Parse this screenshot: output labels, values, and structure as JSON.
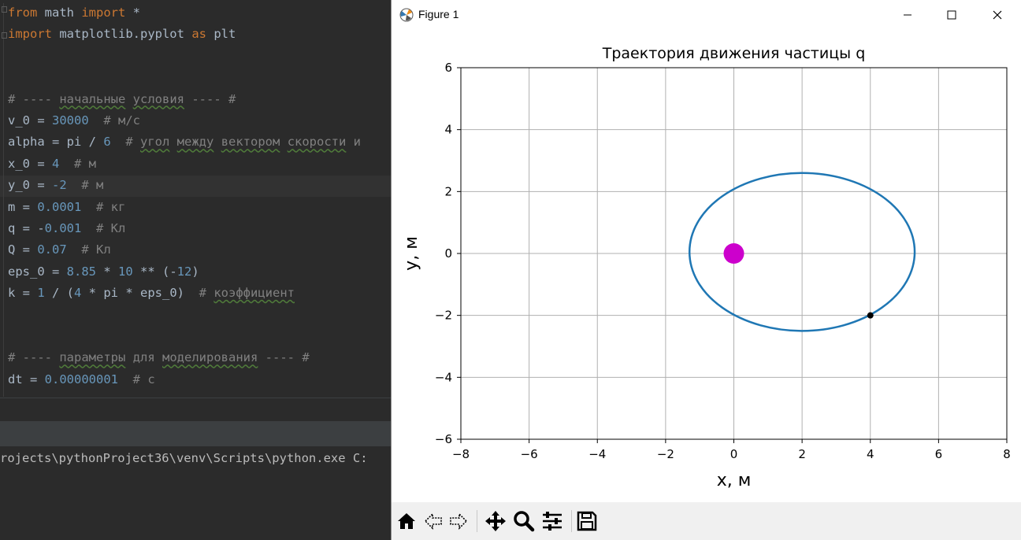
{
  "editor": {
    "lines": [
      [
        {
          "t": "from",
          "c": "kw"
        },
        {
          "t": " math "
        },
        {
          "t": "import",
          "c": "kw"
        },
        {
          "t": " *"
        }
      ],
      [
        {
          "t": "import",
          "c": "kw"
        },
        {
          "t": " matplotlib.pyplot "
        },
        {
          "t": "as",
          "c": "kw"
        },
        {
          "t": " plt"
        }
      ],
      [],
      [],
      [
        {
          "t": "# ---- ",
          "c": "cmt"
        },
        {
          "t": "начальные",
          "c": "cmt wavy"
        },
        {
          "t": " ",
          "c": "cmt"
        },
        {
          "t": "условия",
          "c": "cmt wavy"
        },
        {
          "t": " ---- #",
          "c": "cmt"
        }
      ],
      [
        {
          "t": "v_0 = "
        },
        {
          "t": "30000",
          "c": "num"
        },
        {
          "t": "  # м/с",
          "c": "cmt"
        }
      ],
      [
        {
          "t": "alpha = pi / "
        },
        {
          "t": "6",
          "c": "num"
        },
        {
          "t": "  # ",
          "c": "cmt"
        },
        {
          "t": "угол",
          "c": "cmt wavy"
        },
        {
          "t": " ",
          "c": "cmt"
        },
        {
          "t": "между",
          "c": "cmt wavy"
        },
        {
          "t": " ",
          "c": "cmt"
        },
        {
          "t": "вектором",
          "c": "cmt wavy"
        },
        {
          "t": " ",
          "c": "cmt"
        },
        {
          "t": "скорости",
          "c": "cmt wavy"
        },
        {
          "t": " и",
          "c": "cmt"
        }
      ],
      [
        {
          "t": "x_0 = "
        },
        {
          "t": "4",
          "c": "num"
        },
        {
          "t": "  # м",
          "c": "cmt"
        }
      ],
      [
        {
          "t": "y_0 = "
        },
        {
          "t": "-2",
          "c": "num"
        },
        {
          "t": "  # м",
          "c": "cmt"
        }
      ],
      [
        {
          "t": "m = "
        },
        {
          "t": "0.0001",
          "c": "num"
        },
        {
          "t": "  # кг",
          "c": "cmt"
        }
      ],
      [
        {
          "t": "q = -"
        },
        {
          "t": "0.001",
          "c": "num"
        },
        {
          "t": "  # Кл",
          "c": "cmt"
        }
      ],
      [
        {
          "t": "Q = "
        },
        {
          "t": "0.07",
          "c": "num"
        },
        {
          "t": "  # Кл",
          "c": "cmt"
        }
      ],
      [
        {
          "t": "eps_0 = "
        },
        {
          "t": "8.85",
          "c": "num"
        },
        {
          "t": " * "
        },
        {
          "t": "10",
          "c": "num"
        },
        {
          "t": " ** (-"
        },
        {
          "t": "12",
          "c": "num"
        },
        {
          "t": ")"
        }
      ],
      [
        {
          "t": "k = "
        },
        {
          "t": "1",
          "c": "num"
        },
        {
          "t": " / ("
        },
        {
          "t": "4",
          "c": "num"
        },
        {
          "t": " * pi * eps_0)  "
        },
        {
          "t": "# ",
          "c": "cmt"
        },
        {
          "t": "коэффициент",
          "c": "cmt wavy"
        }
      ],
      [],
      [],
      [
        {
          "t": "# ---- ",
          "c": "cmt"
        },
        {
          "t": "параметры",
          "c": "cmt wavy"
        },
        {
          "t": " для ",
          "c": "cmt"
        },
        {
          "t": "моделирования",
          "c": "cmt wavy"
        },
        {
          "t": " ---- #",
          "c": "cmt"
        }
      ],
      [
        {
          "t": "dt = "
        },
        {
          "t": "0.00000001",
          "c": "num"
        },
        {
          "t": "  # с",
          "c": "cmt"
        }
      ]
    ],
    "highlighted_line": 8
  },
  "console": {
    "command": "rojects\\pythonProject36\\venv\\Scripts\\python.exe C:"
  },
  "window": {
    "title": "Figure 1",
    "minimize_glyph": "—",
    "close_glyph": "✕"
  },
  "toolbar": {
    "buttons": [
      "home-icon",
      "back-arrow-icon",
      "forward-arrow-icon",
      "pan-move-icon",
      "zoom-magnifier-icon",
      "configure-subplots-icon",
      "save-floppy-icon"
    ]
  },
  "chart_data": {
    "type": "line",
    "title": "Траектория движения частицы q",
    "xlabel": "x, м",
    "ylabel": "y, м",
    "xlim": [
      -8,
      8
    ],
    "ylim": [
      -6,
      6
    ],
    "xticks": [
      -8,
      -6,
      -4,
      -2,
      0,
      2,
      4,
      6,
      8
    ],
    "yticks": [
      -6,
      -4,
      -2,
      0,
      2,
      4,
      6
    ],
    "xtick_labels": [
      "−8",
      "−6",
      "−4",
      "−2",
      "0",
      "2",
      "4",
      "6",
      "8"
    ],
    "ytick_labels": [
      "−6",
      "−4",
      "−2",
      "0",
      "2",
      "4",
      "6"
    ],
    "grid": true,
    "series": [
      {
        "kind": "ellipse-trajectory",
        "center": [
          2.0,
          0.05
        ],
        "semi_axes": [
          3.3,
          2.55
        ],
        "color": "#1f77b4"
      }
    ],
    "markers": [
      {
        "name": "charge-Q",
        "x": 0,
        "y": 0,
        "color": "#cc00cc",
        "size": "large"
      },
      {
        "name": "particle-q",
        "x": 4,
        "y": -2,
        "color": "#000000",
        "size": "small"
      }
    ],
    "colors": {
      "grid": "#b0b0b0",
      "trajectory": "#1f77b4",
      "charge": "#cc00cc"
    }
  }
}
